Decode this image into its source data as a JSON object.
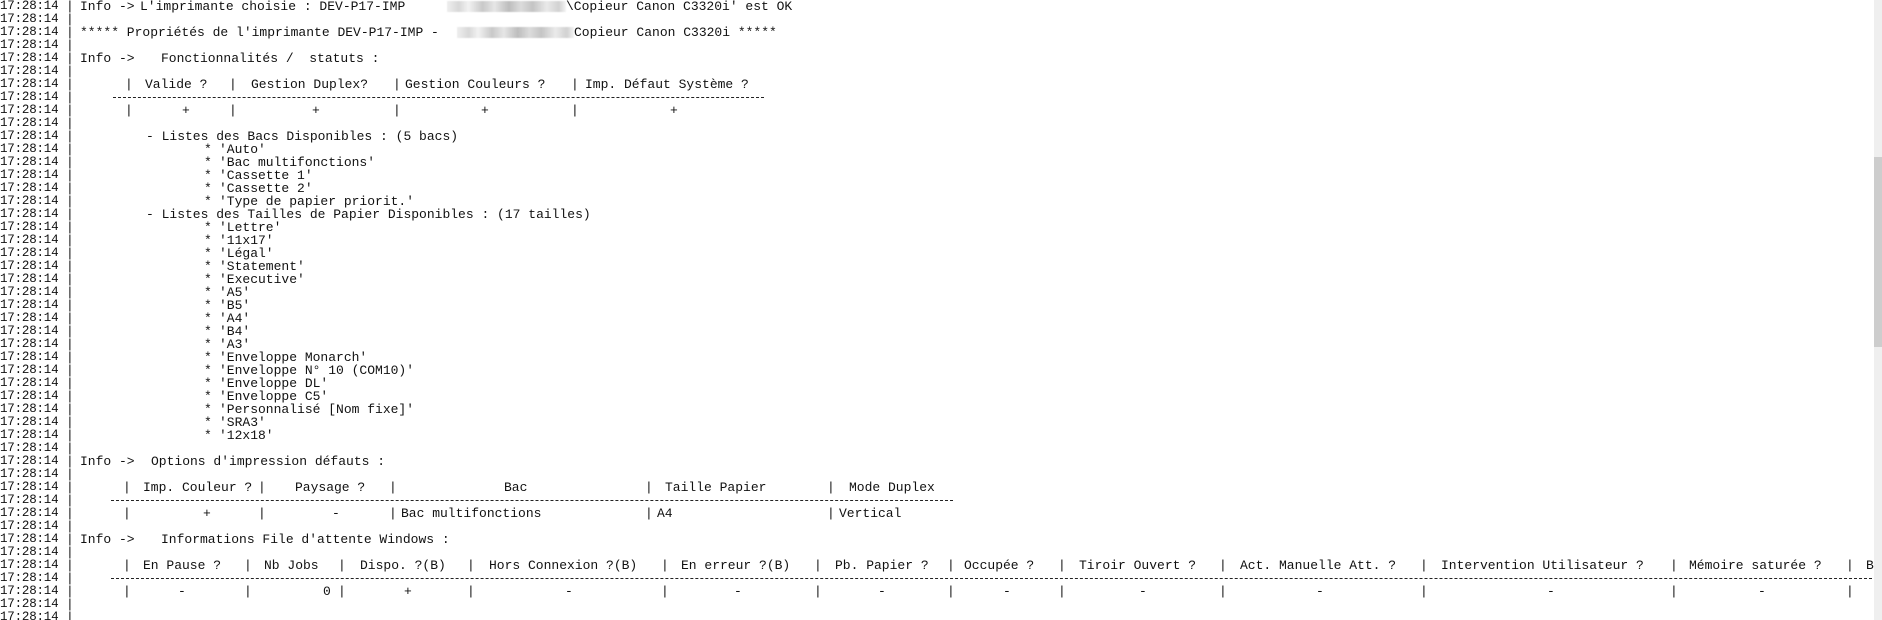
{
  "timestamp": "17:28:14",
  "info_prefix": "Info ->",
  "printer_check": {
    "text": "L'imprimante choisie : DEV-P17-IMP",
    "suffix": "\\Copieur Canon C3320i' est OK"
  },
  "properties_title": {
    "prefix": "***** Propriétés de l'imprimante DEV-P17-IMP -",
    "suffix": "Copieur Canon C3320i *****"
  },
  "features": {
    "title": "Fonctionnalités /  statuts :",
    "headers": [
      "Valide ?",
      "Gestion Duplex?",
      "Gestion Couleurs ?",
      "Imp. Défaut Système ?"
    ],
    "values": [
      "+",
      "+",
      "+",
      "+"
    ]
  },
  "trays": {
    "title": "- Listes des Bacs Disponibles : (5 bacs)",
    "items": [
      "'Auto'",
      "'Bac multifonctions'",
      "'Cassette 1'",
      "'Cassette 2'",
      "'Type de papier priorit.'"
    ]
  },
  "paper_sizes": {
    "title": "- Listes des Tailles de Papier Disponibles : (17 tailles)",
    "items": [
      "'Lettre'",
      "'11x17'",
      "'Légal'",
      "'Statement'",
      "'Executive'",
      "'A5'",
      "'B5'",
      "'A4'",
      "'B4'",
      "'A3'",
      "'Enveloppe Monarch'",
      "'Enveloppe N° 10 (COM10)'",
      "'Enveloppe DL'",
      "'Enveloppe C5'",
      "'Personnalisé [Nom fixe]'",
      "'SRA3'",
      "'12x18'"
    ]
  },
  "bullet": "*",
  "print_options": {
    "title": "Options d'impression défauts :",
    "headers": [
      "Imp. Couleur ?",
      "Paysage ?",
      "Bac",
      "Taille Papier",
      "Mode Duplex"
    ],
    "values": [
      "+",
      "-",
      "Bac multifonctions",
      "A4",
      "Vertical"
    ]
  },
  "queue": {
    "title": "Informations File d'attente Windows :",
    "headers": [
      "En Pause ?",
      "Nb Jobs",
      "Dispo. ?(B)",
      "Hors Connexion ?(B)",
      "En erreur ?(B)",
      "Pb. Papier ?",
      "Occupée ?",
      "Tiroir Ouvert ?",
      "Act. Manuelle Att. ?",
      "Intervention Utilisateur ?",
      "Mémoire saturée ?",
      "B"
    ],
    "values": [
      "-",
      "0",
      "+",
      "-",
      "-",
      "-",
      "-",
      "-",
      "-",
      "-",
      "-"
    ]
  },
  "separator": "|"
}
